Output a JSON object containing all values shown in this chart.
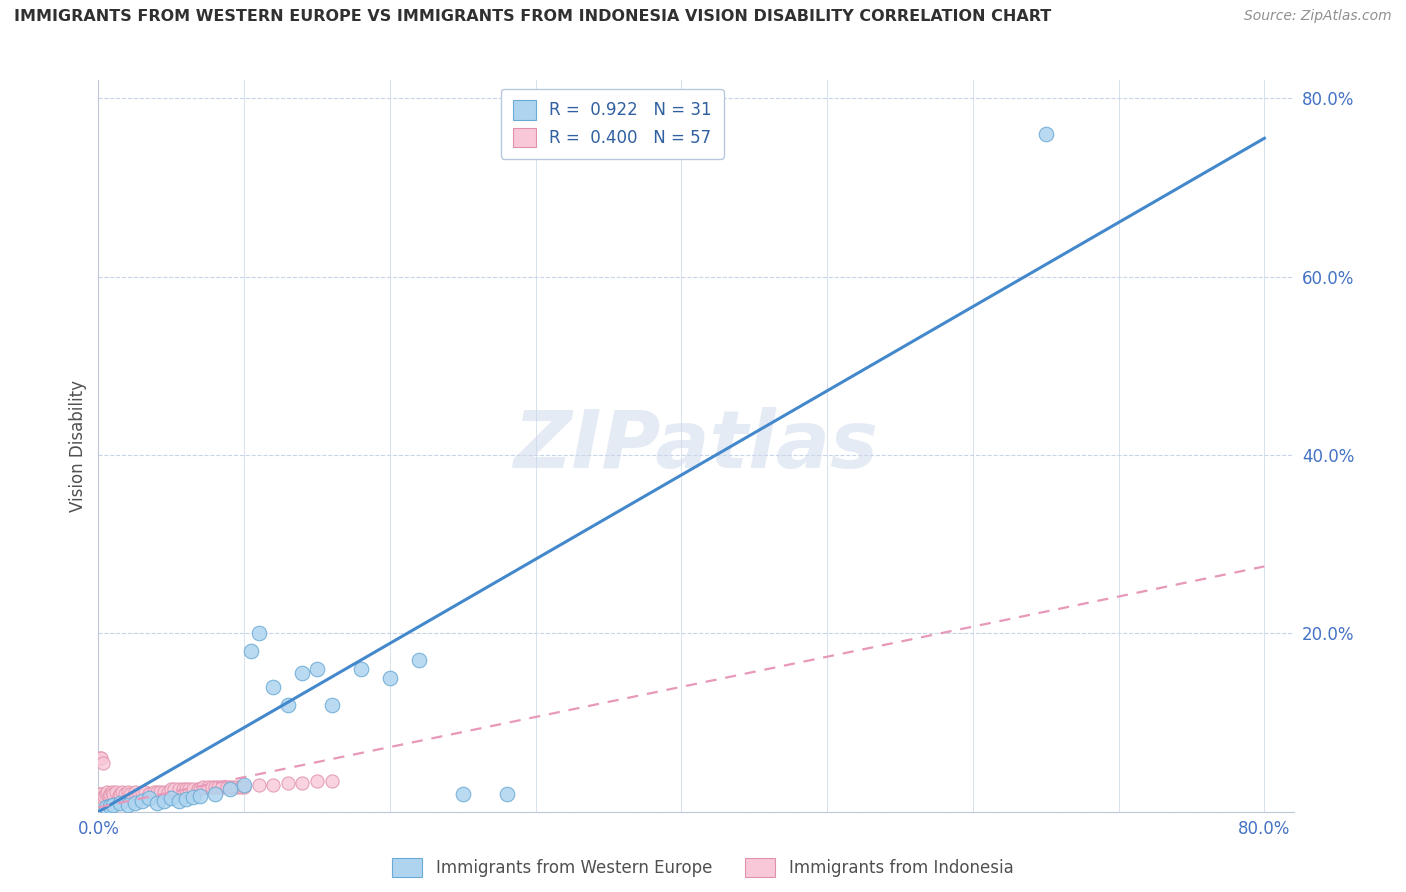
{
  "title": "IMMIGRANTS FROM WESTERN EUROPE VS IMMIGRANTS FROM INDONESIA VISION DISABILITY CORRELATION CHART",
  "source": "Source: ZipAtlas.com",
  "ylabel": "Vision Disability",
  "watermark": "ZIPatlas",
  "legend_r1": "R =  0.922",
  "legend_n1": "N = 31",
  "legend_r2": "R =  0.400",
  "legend_n2": "N = 57",
  "blue_color": "#aed4f0",
  "blue_edge": "#6aaad4",
  "pink_color": "#f8c8d8",
  "pink_edge": "#e090a8",
  "blue_line_color": "#4488cc",
  "pink_line_color": "#e898b8",
  "title_color": "#303030",
  "source_color": "#909090",
  "axis_label_color": "#4472c4",
  "grid_color": "#c8d4e8",
  "blue_scatter_x": [
    0.005,
    0.008,
    0.01,
    0.015,
    0.02,
    0.025,
    0.03,
    0.035,
    0.04,
    0.045,
    0.05,
    0.055,
    0.06,
    0.065,
    0.07,
    0.08,
    0.09,
    0.1,
    0.105,
    0.11,
    0.12,
    0.13,
    0.14,
    0.15,
    0.16,
    0.18,
    0.2,
    0.22,
    0.25,
    0.28,
    0.65
  ],
  "blue_scatter_y": [
    0.005,
    0.006,
    0.008,
    0.01,
    0.008,
    0.01,
    0.012,
    0.015,
    0.01,
    0.012,
    0.015,
    0.012,
    0.014,
    0.016,
    0.018,
    0.02,
    0.025,
    0.03,
    0.18,
    0.2,
    0.14,
    0.12,
    0.155,
    0.16,
    0.12,
    0.16,
    0.15,
    0.17,
    0.02,
    0.02,
    0.76
  ],
  "pink_scatter_x": [
    0.001,
    0.002,
    0.003,
    0.004,
    0.005,
    0.006,
    0.007,
    0.008,
    0.009,
    0.01,
    0.012,
    0.014,
    0.015,
    0.016,
    0.018,
    0.02,
    0.022,
    0.025,
    0.028,
    0.03,
    0.032,
    0.035,
    0.038,
    0.04,
    0.042,
    0.045,
    0.048,
    0.05,
    0.052,
    0.055,
    0.058,
    0.06,
    0.062,
    0.065,
    0.068,
    0.07,
    0.072,
    0.075,
    0.078,
    0.08,
    0.082,
    0.085,
    0.088,
    0.09,
    0.092,
    0.095,
    0.098,
    0.1,
    0.11,
    0.12,
    0.13,
    0.14,
    0.15,
    0.16,
    0.001,
    0.002,
    0.003
  ],
  "pink_scatter_y": [
    0.02,
    0.02,
    0.015,
    0.018,
    0.02,
    0.022,
    0.018,
    0.02,
    0.022,
    0.02,
    0.022,
    0.018,
    0.02,
    0.022,
    0.02,
    0.022,
    0.02,
    0.022,
    0.02,
    0.022,
    0.022,
    0.02,
    0.022,
    0.022,
    0.022,
    0.022,
    0.022,
    0.025,
    0.025,
    0.025,
    0.025,
    0.025,
    0.025,
    0.025,
    0.025,
    0.025,
    0.028,
    0.028,
    0.028,
    0.028,
    0.028,
    0.028,
    0.028,
    0.028,
    0.028,
    0.028,
    0.028,
    0.028,
    0.03,
    0.03,
    0.032,
    0.032,
    0.035,
    0.035,
    0.06,
    0.06,
    0.055
  ],
  "blue_line_x": [
    0.0,
    0.8
  ],
  "blue_line_y": [
    0.0,
    0.755
  ],
  "pink_line_x": [
    0.0,
    0.8
  ],
  "pink_line_y": [
    0.005,
    0.275
  ],
  "xlim": [
    0.0,
    0.82
  ],
  "ylim": [
    0.0,
    0.82
  ],
  "figsize": [
    14.06,
    8.92
  ],
  "dpi": 100
}
